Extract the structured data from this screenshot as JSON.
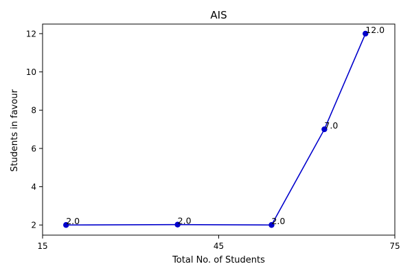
{
  "chart_data": {
    "type": "line",
    "title": "AIS",
    "xlabel": "Total No. of Students",
    "ylabel": "Students in favour",
    "x": [
      19,
      38,
      54,
      63,
      70
    ],
    "series": [
      {
        "values": [
          2.0,
          2.02,
          2.0,
          7.0,
          12.0
        ],
        "color": "#0000cc"
      }
    ],
    "data_labels": [
      "2.0",
      "2.0",
      "2.0",
      "7.0",
      "12.0"
    ],
    "xlim": [
      15,
      75
    ],
    "ylim": [
      1.47,
      12.5
    ],
    "xticks": [
      15,
      45,
      75
    ],
    "yticks": [
      2,
      4,
      6,
      8,
      10,
      12
    ],
    "grid": false,
    "legend": "none"
  }
}
